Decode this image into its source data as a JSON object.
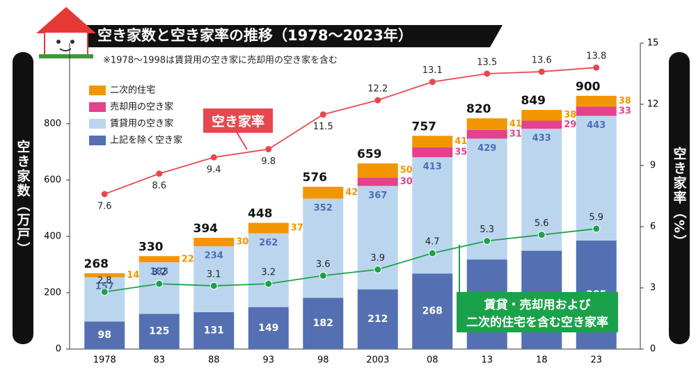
{
  "chart_data": {
    "type": "bar",
    "title": "空き家数と空き家率の推移（1978～2023年）",
    "note": "※1978～1998は賃貸用の空き家に売却用の空き家を含む",
    "y_label": "空き家数（万戸）",
    "y2_label": "空き家率（%）",
    "categories": [
      "1978",
      "83",
      "88",
      "93",
      "98",
      "2003",
      "08",
      "13",
      "18",
      "23"
    ],
    "totals": [
      268,
      330,
      394,
      448,
      576,
      659,
      757,
      820,
      849,
      900
    ],
    "series": [
      {
        "name": "上記を除く空き家",
        "color": "#5470b3",
        "label_color": "#ffffff",
        "values": [
          98,
          125,
          131,
          149,
          182,
          212,
          268,
          318,
          349,
          385
        ]
      },
      {
        "name": "賃貸用の空き家",
        "color": "#bcd5ef",
        "label_color": "#4a6fb5",
        "values": [
          157,
          183,
          234,
          262,
          352,
          367,
          413,
          429,
          433,
          443
        ]
      },
      {
        "name": "売却用の空き家",
        "color": "#e5418c",
        "label_color": "#e5418c",
        "values": [
          null,
          null,
          null,
          null,
          null,
          30,
          35,
          31,
          29,
          33
        ]
      },
      {
        "name": "二次的住宅",
        "color": "#f29600",
        "label_color": "#f29600",
        "values": [
          14,
          22,
          30,
          37,
          42,
          50,
          41,
          41,
          38,
          38
        ]
      },
      {
        "name": "空き家率",
        "type": "line",
        "axis": "y2",
        "color": "#e8474f",
        "values": [
          7.6,
          8.6,
          9.4,
          9.8,
          11.5,
          12.2,
          13.1,
          13.5,
          13.6,
          13.8
        ]
      },
      {
        "name": "賃貸・売却用および\n二次的住宅を含む空き家率",
        "type": "line",
        "axis": "y2",
        "color": "#1aa24a",
        "values": [
          2.8,
          3.2,
          3.1,
          3.2,
          3.6,
          3.9,
          4.7,
          5.3,
          5.6,
          5.9
        ]
      }
    ],
    "ylim": [
      0,
      1086
    ],
    "yticks": [
      0,
      200,
      400,
      600,
      800
    ],
    "y2lim": [
      0,
      15
    ],
    "y2ticks": [
      0,
      3,
      6,
      9,
      12,
      15
    ],
    "grid": false
  }
}
